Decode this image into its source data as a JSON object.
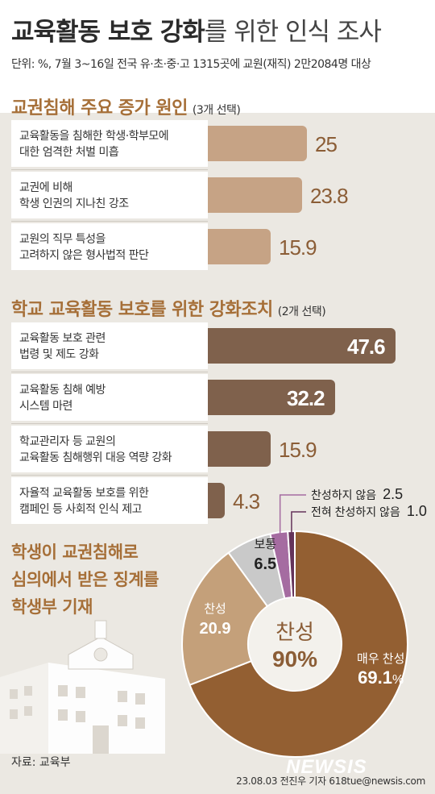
{
  "header": {
    "title_bold": "교육활동 보호 강화",
    "title_light": "를 위한 인식 조사",
    "unit": "단위: %, 7월 3~16일 전국 유·초·중·고 1315곳에 교원(재직) 2만2084명 대상"
  },
  "colors": {
    "bar_light": "#c6a385",
    "bar_dark": "#7f614c",
    "accent": "#a66f38"
  },
  "chart_data": [
    {
      "type": "bar",
      "title": "교권침해 주요 증가 원인",
      "note": "(3개 선택)",
      "categories": [
        "교육활동을 침해한 학생·학부모에 대한 엄격한 처벌 미흡",
        "교권에 비해 학생 인권의 지나친 강조",
        "교원의 직무 특성을 고려하지 않은 형사법적 판단"
      ],
      "labels": [
        [
          "교육활동을 침해한 학생·학부모에",
          "대한 엄격한 처벌 미흡"
        ],
        [
          "교권에 비해",
          "학생 인권의 지나친 강조"
        ],
        [
          "교원의 직무 특성을",
          "고려하지 않은 형사법적 판단"
        ]
      ],
      "values": [
        25,
        23.8,
        15.9
      ],
      "value_labels": [
        "25",
        "23.8",
        "15.9"
      ]
    },
    {
      "type": "bar",
      "title": "학교 교육활동 보호를 위한 강화조치",
      "note": "(2개 선택)",
      "categories": [
        "교육활동 보호 관련 법령 및 제도 강화",
        "교육활동 침해 예방 시스템 마련",
        "학교관리자 등 교원의 교육활동 침해행위 대응 역량 강화",
        "자율적 교육활동 보호를 위한 캠페인 등 사회적 인식 제고"
      ],
      "labels": [
        [
          "교육활동 보호 관련",
          "법령 및 제도 강화"
        ],
        [
          "교육활동 침해 예방",
          "시스템 마련"
        ],
        [
          "학교관리자 등 교원의",
          "교육활동 침해행위 대응 역량 강화"
        ],
        [
          "자율적 교육활동 보호를 위한",
          "캠페인 등 사회적 인식 제고"
        ]
      ],
      "values": [
        47.6,
        32.2,
        15.9,
        4.3
      ],
      "value_labels": [
        "47.6",
        "32.2",
        "15.9",
        "4.3"
      ]
    },
    {
      "type": "pie",
      "title": "학생이 교권침해로 심의에서 받은 징계를 학생부 기재",
      "title_lines": [
        "학생이 교권침해로",
        "심의에서 받은 징계를",
        "학생부 기재"
      ],
      "center_label": "찬성",
      "center_value": "90%",
      "slices": [
        {
          "name": "매우 찬성",
          "value": 69.1,
          "label": "69.1",
          "suffix": "%",
          "color": "#935f32"
        },
        {
          "name": "찬성",
          "value": 20.9,
          "label": "20.9",
          "color": "#c4a07a"
        },
        {
          "name": "보통",
          "value": 6.5,
          "label": "6.5",
          "color": "#c9c9c9"
        },
        {
          "name": "찬성하지 않음",
          "value": 2.5,
          "label": "2.5",
          "color": "#a56ca1"
        },
        {
          "name": "전혀 찬성하지 않음",
          "value": 1.0,
          "label": "1.0",
          "color": "#64335a"
        }
      ]
    }
  ],
  "footer": {
    "source": "자료: 교육부",
    "credit": "23.08.03 전진우 기자 618tue@newsis.com",
    "logo": "NEWSIS"
  }
}
